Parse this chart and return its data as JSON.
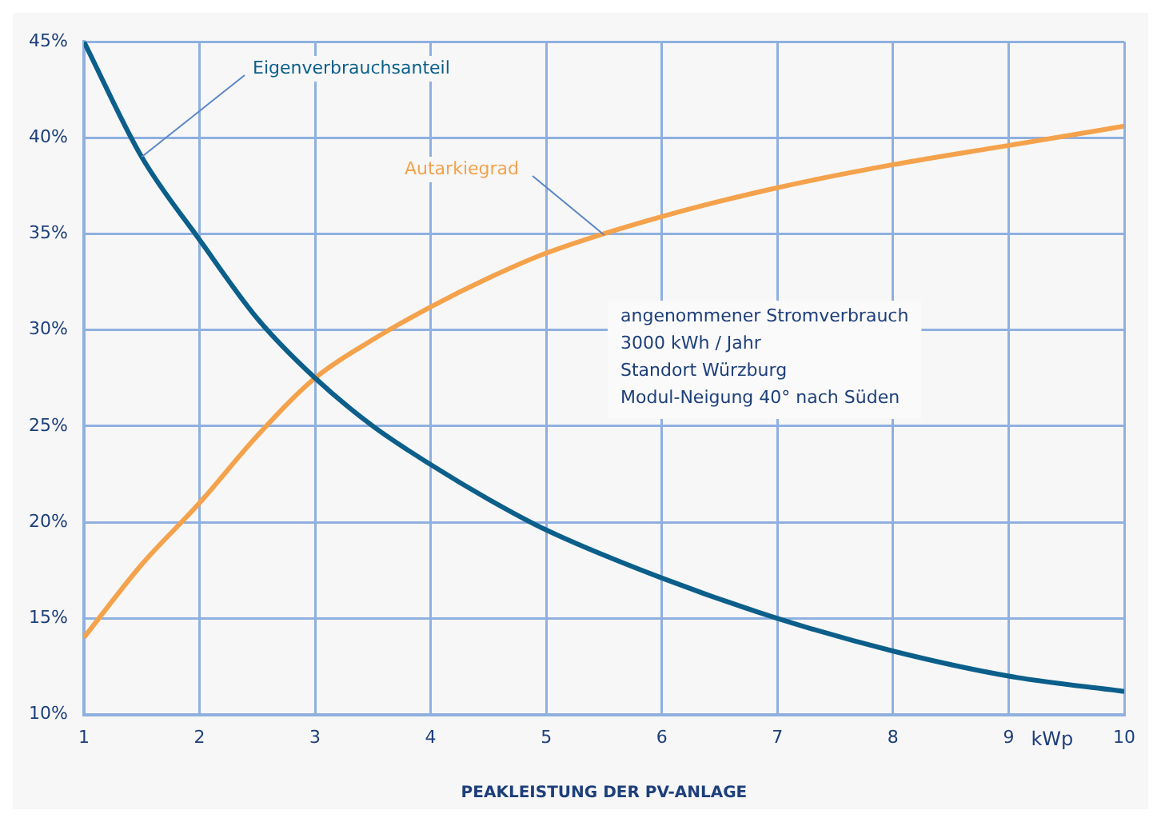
{
  "chart_data": {
    "type": "line",
    "xlabel": "PEAKLEISTUNG DER PV-ANLAGE",
    "x": [
      1,
      1.5,
      2,
      2.5,
      3,
      3.5,
      4,
      4.5,
      5,
      6,
      7,
      8,
      9,
      10
    ],
    "series": [
      {
        "name": "Eigenverbrauchsanteil",
        "color": "#0b5f8a",
        "values": [
          45,
          39,
          34.7,
          30.6,
          27.5,
          25,
          23,
          21.2,
          19.6,
          17.1,
          15,
          13.3,
          12,
          11.2
        ]
      },
      {
        "name": "Autarkiegrad",
        "color": "#f4a24c",
        "values": [
          14,
          17.8,
          21,
          24.5,
          27.5,
          29.5,
          31.2,
          32.7,
          34,
          35.9,
          37.4,
          38.6,
          39.6,
          40.6
        ]
      }
    ],
    "xlim": [
      1,
      10
    ],
    "xticks": [
      1,
      2,
      3,
      4,
      5,
      6,
      7,
      8,
      9,
      10
    ],
    "ylim": [
      10,
      45
    ],
    "yticks": [
      {
        "value": 10,
        "label": "10%"
      },
      {
        "value": 15,
        "label": "15%"
      },
      {
        "value": 20,
        "label": "20%"
      },
      {
        "value": 25,
        "label": "25%"
      },
      {
        "value": 30,
        "label": "30%"
      },
      {
        "value": 35,
        "label": "35%"
      },
      {
        "value": 40,
        "label": "40%"
      },
      {
        "value": 45,
        "label": "45%"
      }
    ],
    "annotations": [
      "angenommener Stromverbrauch\n3000 kWh / Jahr\nStandort Würzburg\nModul-Neigung 40° nach Süden",
      "kWp"
    ],
    "grid": true,
    "legend": false,
    "marker": "none",
    "line_style": "solid"
  }
}
